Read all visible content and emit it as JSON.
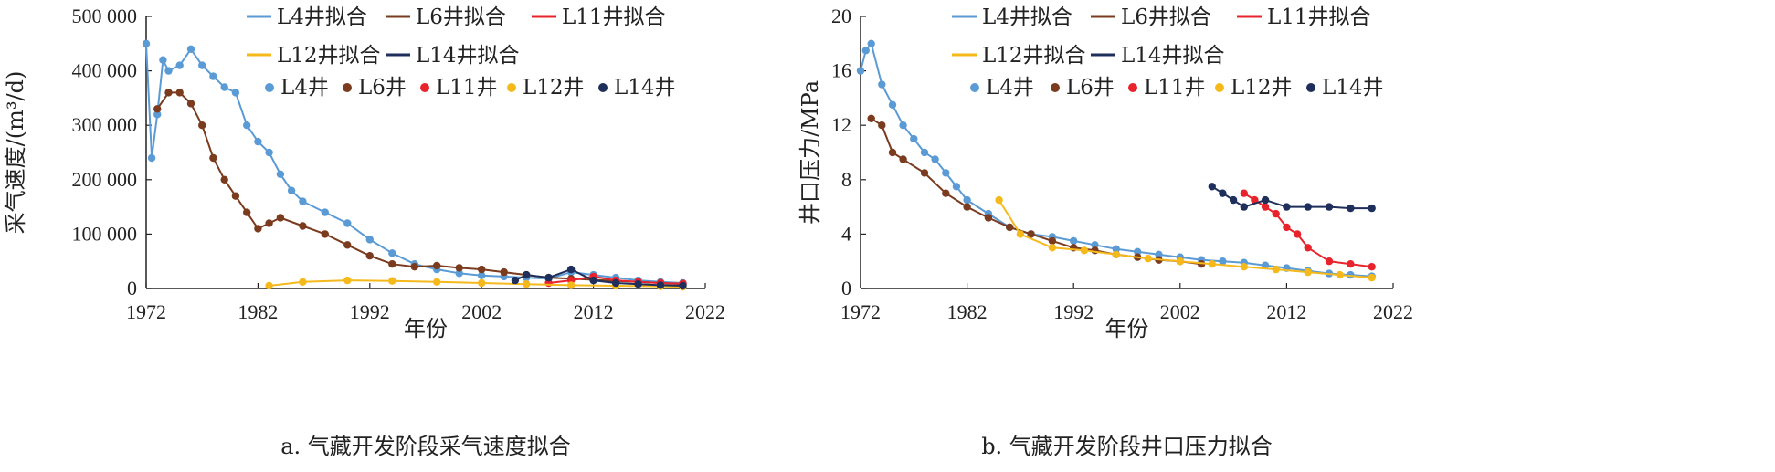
{
  "chart_data": [
    {
      "type": "line",
      "panel": "a",
      "caption": "a. 气藏开发阶段采气速度拟合",
      "xlabel": "年份",
      "ylabel": "采气速度/(m³/d)",
      "xlim": [
        1972,
        2022
      ],
      "ylim": [
        0,
        500000
      ],
      "x_ticks": [
        "1972",
        "1982",
        "1992",
        "2002",
        "2012",
        "2022"
      ],
      "y_ticks": [
        "0",
        "100 000",
        "200 000",
        "300 000",
        "400 000",
        "500 000"
      ],
      "legend": [
        "L4井拟合",
        "L6井拟合",
        "L11井拟合",
        "L12井拟合",
        "L14井拟合",
        "L4井",
        "L6井",
        "L11井",
        "L12井",
        "L14井"
      ],
      "legend_position": "top-right",
      "colors": {
        "L4": "#5b9bd5",
        "L6": "#7a3b1e",
        "L11": "#e8232b",
        "L12": "#f5b91c",
        "L14": "#1f2f5c"
      },
      "series": [
        {
          "name": "L4井",
          "x": [
            1972,
            1972.5,
            1973,
            1973.5,
            1974,
            1975,
            1976,
            1977,
            1978,
            1979,
            1980,
            1981,
            1982,
            1983,
            1984,
            1985,
            1986,
            1988,
            1990,
            1992,
            1994,
            1996,
            1998,
            2000,
            2002,
            2004,
            2006,
            2008,
            2010,
            2012,
            2014,
            2016,
            2018,
            2020
          ],
          "y": [
            450000,
            240000,
            320000,
            420000,
            400000,
            410000,
            440000,
            410000,
            390000,
            370000,
            360000,
            300000,
            270000,
            250000,
            210000,
            180000,
            160000,
            140000,
            120000,
            90000,
            65000,
            45000,
            35000,
            28000,
            24000,
            22000,
            20000,
            18000,
            30000,
            25000,
            20000,
            15000,
            12000,
            10000
          ]
        },
        {
          "name": "L6井",
          "x": [
            1973,
            1974,
            1975,
            1976,
            1977,
            1978,
            1979,
            1980,
            1981,
            1982,
            1983,
            1984,
            1986,
            1988,
            1990,
            1992,
            1994,
            1996,
            1998,
            2000,
            2002,
            2004,
            2006,
            2008,
            2010,
            2012,
            2014,
            2016,
            2018,
            2020
          ],
          "y": [
            330000,
            360000,
            360000,
            340000,
            300000,
            240000,
            200000,
            170000,
            140000,
            110000,
            120000,
            130000,
            115000,
            100000,
            80000,
            60000,
            45000,
            40000,
            42000,
            38000,
            35000,
            30000,
            25000,
            20000,
            18000,
            16000,
            14000,
            12000,
            10000,
            8000
          ]
        },
        {
          "name": "L11井",
          "x": [
            2008,
            2010,
            2012,
            2014,
            2016,
            2018,
            2020
          ],
          "y": [
            10000,
            15000,
            22000,
            15000,
            12000,
            10000,
            9000
          ]
        },
        {
          "name": "L12井",
          "x": [
            1983,
            1986,
            1990,
            1994,
            1998,
            2002,
            2006,
            2010,
            2014,
            2018,
            2020
          ],
          "y": [
            5000,
            12000,
            15000,
            14000,
            12000,
            10000,
            8000,
            6000,
            5000,
            4000,
            3000
          ]
        },
        {
          "name": "L14井",
          "x": [
            2005,
            2006,
            2008,
            2010,
            2012,
            2014,
            2016,
            2018,
            2020
          ],
          "y": [
            15000,
            25000,
            20000,
            35000,
            15000,
            10000,
            8000,
            6000,
            5000
          ]
        }
      ]
    },
    {
      "type": "line",
      "panel": "b",
      "caption": "b. 气藏开发阶段井口压力拟合",
      "xlabel": "年份",
      "ylabel": "井口压力/MPa",
      "xlim": [
        1972,
        2022
      ],
      "ylim": [
        0,
        20
      ],
      "x_ticks": [
        "1972",
        "1982",
        "1992",
        "2002",
        "2012",
        "2022"
      ],
      "y_ticks": [
        "0",
        "4",
        "8",
        "12",
        "16",
        "20"
      ],
      "legend": [
        "L4井拟合",
        "L6井拟合",
        "L11井拟合",
        "L12井拟合",
        "L14井拟合",
        "L4井",
        "L6井",
        "L11井",
        "L12井",
        "L14井"
      ],
      "legend_position": "top-right",
      "colors": {
        "L4": "#5b9bd5",
        "L6": "#7a3b1e",
        "L11": "#e8232b",
        "L12": "#f5b91c",
        "L14": "#1f2f5c"
      },
      "series": [
        {
          "name": "L4井",
          "x": [
            1972,
            1972.5,
            1973,
            1974,
            1975,
            1976,
            1977,
            1978,
            1979,
            1980,
            1981,
            1982,
            1984,
            1986,
            1988,
            1990,
            1992,
            1994,
            1996,
            1998,
            2000,
            2002,
            2004,
            2006,
            2008,
            2010,
            2012,
            2014,
            2016,
            2018,
            2020
          ],
          "y": [
            16,
            17.5,
            18,
            15,
            13.5,
            12,
            11,
            10,
            9.5,
            8.5,
            7.5,
            6.5,
            5.5,
            4.5,
            4,
            3.8,
            3.5,
            3.2,
            2.9,
            2.7,
            2.5,
            2.3,
            2.1,
            2,
            1.9,
            1.7,
            1.5,
            1.3,
            1.1,
            1,
            0.9
          ]
        },
        {
          "name": "L6井",
          "x": [
            1973,
            1974,
            1975,
            1976,
            1978,
            1980,
            1982,
            1984,
            1986,
            1988,
            1990,
            1992,
            1994,
            1996,
            1998,
            2000,
            2002,
            2004
          ],
          "y": [
            12.5,
            12,
            10,
            9.5,
            8.5,
            7,
            6,
            5.2,
            4.5,
            4,
            3.5,
            3,
            2.8,
            2.5,
            2.3,
            2.1,
            2,
            1.8
          ]
        },
        {
          "name": "L11井",
          "x": [
            2008,
            2009,
            2010,
            2011,
            2012,
            2013,
            2014,
            2016,
            2018,
            2020
          ],
          "y": [
            7,
            6.5,
            6,
            5.5,
            4.5,
            4,
            3,
            2,
            1.8,
            1.6
          ]
        },
        {
          "name": "L12井",
          "x": [
            1985,
            1987,
            1990,
            1993,
            1996,
            1999,
            2002,
            2005,
            2008,
            2011,
            2014,
            2017,
            2020
          ],
          "y": [
            6.5,
            4,
            3,
            2.8,
            2.5,
            2.2,
            2,
            1.8,
            1.6,
            1.4,
            1.2,
            1,
            0.8
          ]
        },
        {
          "name": "L14井",
          "x": [
            2005,
            2006,
            2007,
            2008,
            2010,
            2012,
            2014,
            2016,
            2018,
            2020
          ],
          "y": [
            7.5,
            7,
            6.5,
            6,
            6.5,
            6,
            6,
            6,
            5.9,
            5.9
          ]
        }
      ]
    }
  ]
}
